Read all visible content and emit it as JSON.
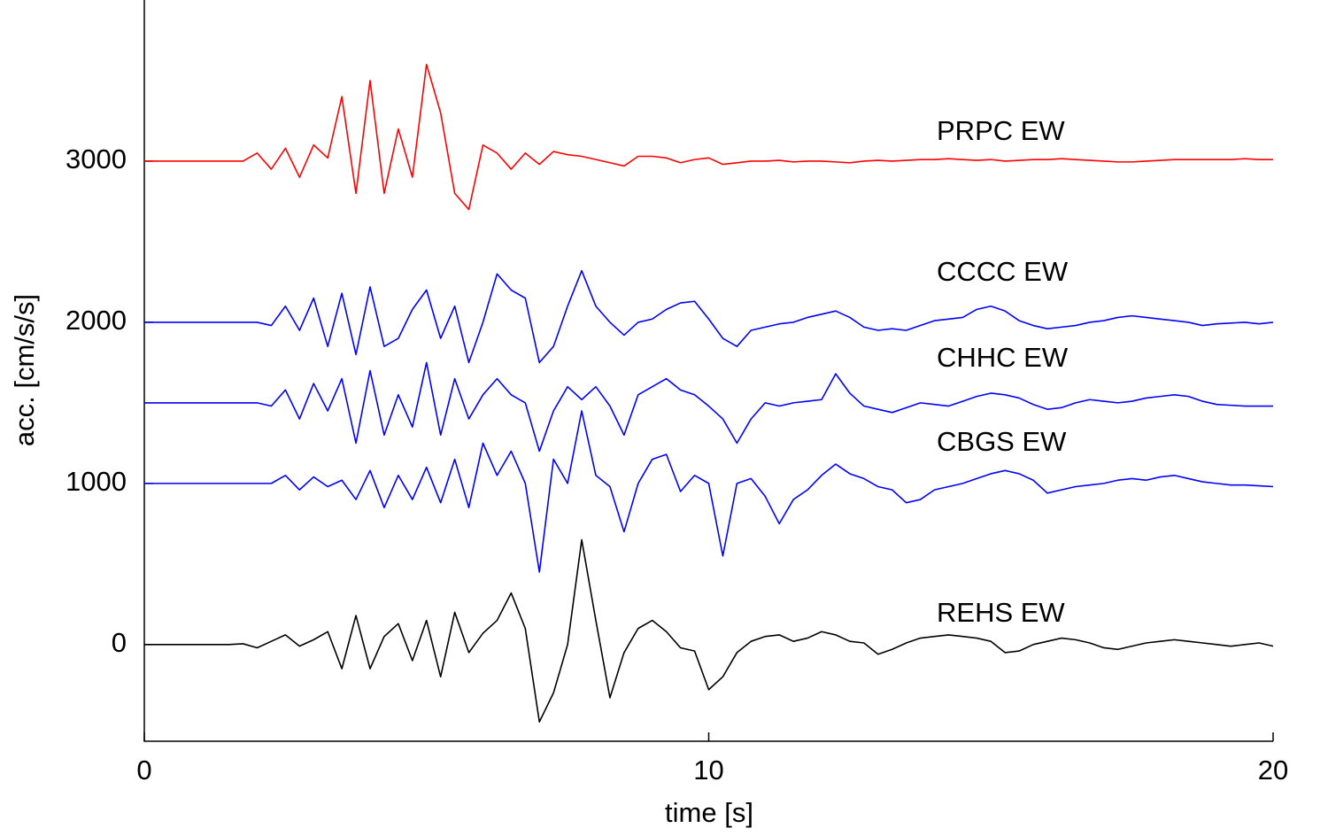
{
  "chart_data": {
    "type": "line",
    "x_label": "time [s]",
    "y_label": "acc. [cm/s/s]",
    "xlim": [
      0,
      20
    ],
    "xticks": [
      0,
      10,
      20
    ],
    "ylim": [
      -600,
      4000
    ],
    "yticks": [
      0,
      1000,
      2000,
      3000
    ],
    "grid": false,
    "x": [
      0,
      0.25,
      0.5,
      0.75,
      1,
      1.25,
      1.5,
      1.75,
      2,
      2.25,
      2.5,
      2.75,
      3,
      3.25,
      3.5,
      3.75,
      4,
      4.25,
      4.5,
      4.75,
      5,
      5.25,
      5.5,
      5.75,
      6,
      6.25,
      6.5,
      6.75,
      7,
      7.25,
      7.5,
      7.75,
      8,
      8.25,
      8.5,
      8.75,
      9,
      9.25,
      9.5,
      9.75,
      10,
      10.25,
      10.5,
      10.75,
      11,
      11.25,
      11.5,
      11.75,
      12,
      12.25,
      12.5,
      12.75,
      13,
      13.25,
      13.5,
      13.75,
      14,
      14.25,
      14.5,
      14.75,
      15,
      15.25,
      15.5,
      15.75,
      16,
      16.25,
      16.5,
      16.75,
      17,
      17.25,
      17.5,
      17.75,
      18,
      18.25,
      18.5,
      18.75,
      19,
      19.25,
      19.5,
      19.75,
      20
    ],
    "series": [
      {
        "name": "PRPC EW",
        "color": "#ff0000",
        "values": [
          3000,
          3000,
          3000,
          3000,
          3000,
          3000,
          3000,
          3000,
          3050,
          2950,
          3080,
          2900,
          3100,
          3020,
          3400,
          2800,
          3500,
          2800,
          3200,
          2900,
          3600,
          3300,
          2800,
          2700,
          3100,
          3050,
          2950,
          3050,
          2980,
          3060,
          3040,
          3030,
          3010,
          2990,
          2970,
          3030,
          3030,
          3020,
          2990,
          3010,
          3020,
          2980,
          2990,
          3000,
          3000,
          3005,
          2995,
          3000,
          3000,
          2995,
          2990,
          3000,
          3005,
          3000,
          3005,
          3010,
          3010,
          3015,
          3010,
          3005,
          3010,
          3000,
          3005,
          3010,
          3010,
          3015,
          3010,
          3005,
          3000,
          2995,
          2995,
          3000,
          3005,
          3010,
          3010,
          3010,
          3010,
          3010,
          3015,
          3010,
          3010
        ]
      },
      {
        "name": "CCCC EW",
        "color": "#0000ff",
        "values": [
          2000,
          2000,
          2000,
          2000,
          2000,
          2000,
          2000,
          2000,
          2000,
          1980,
          2100,
          1950,
          2150,
          1850,
          2180,
          1800,
          2220,
          1850,
          1900,
          2080,
          2200,
          1900,
          2100,
          1750,
          2000,
          2300,
          2200,
          2150,
          1750,
          1850,
          2100,
          2320,
          2100,
          2000,
          1920,
          2000,
          2020,
          2080,
          2120,
          2130,
          2020,
          1900,
          1850,
          1950,
          1970,
          1990,
          2000,
          2030,
          2050,
          2070,
          2030,
          1970,
          1950,
          1960,
          1950,
          1980,
          2010,
          2020,
          2030,
          2080,
          2100,
          2070,
          2010,
          1980,
          1960,
          1970,
          1980,
          2000,
          2010,
          2030,
          2040,
          2030,
          2020,
          2010,
          2000,
          1980,
          1990,
          1995,
          2000,
          1990,
          2000
        ]
      },
      {
        "name": "CHHC EW",
        "color": "#0000ff",
        "values": [
          1500,
          1500,
          1500,
          1500,
          1500,
          1500,
          1500,
          1500,
          1500,
          1480,
          1580,
          1400,
          1620,
          1450,
          1650,
          1250,
          1700,
          1300,
          1550,
          1350,
          1750,
          1300,
          1650,
          1400,
          1550,
          1650,
          1550,
          1500,
          1200,
          1450,
          1600,
          1520,
          1600,
          1480,
          1300,
          1550,
          1600,
          1650,
          1580,
          1550,
          1480,
          1400,
          1250,
          1400,
          1500,
          1480,
          1500,
          1510,
          1520,
          1680,
          1560,
          1480,
          1460,
          1440,
          1470,
          1500,
          1490,
          1480,
          1510,
          1540,
          1560,
          1550,
          1530,
          1490,
          1460,
          1470,
          1500,
          1520,
          1510,
          1500,
          1510,
          1530,
          1540,
          1550,
          1540,
          1510,
          1490,
          1485,
          1480,
          1480,
          1480
        ]
      },
      {
        "name": "CBGS EW",
        "color": "#0000ff",
        "values": [
          1000,
          1000,
          1000,
          1000,
          1000,
          1000,
          1000,
          1000,
          1000,
          1000,
          1050,
          960,
          1040,
          980,
          1020,
          900,
          1080,
          850,
          1050,
          900,
          1100,
          880,
          1150,
          850,
          1250,
          1050,
          1200,
          1000,
          450,
          1150,
          1000,
          1450,
          1050,
          980,
          700,
          1000,
          1150,
          1180,
          950,
          1050,
          1000,
          550,
          1000,
          1030,
          920,
          750,
          900,
          960,
          1050,
          1120,
          1060,
          1030,
          980,
          960,
          880,
          900,
          960,
          980,
          1000,
          1030,
          1060,
          1080,
          1060,
          1020,
          940,
          960,
          980,
          990,
          1000,
          1020,
          1030,
          1020,
          1040,
          1050,
          1030,
          1010,
          1000,
          990,
          990,
          985,
          980
        ]
      },
      {
        "name": "REHS EW",
        "color": "#000000",
        "values": [
          0,
          0,
          0,
          0,
          0,
          0,
          0,
          5,
          -20,
          20,
          60,
          -10,
          30,
          80,
          -150,
          180,
          -150,
          50,
          130,
          -100,
          150,
          -200,
          200,
          -50,
          70,
          150,
          320,
          100,
          -480,
          -300,
          0,
          650,
          150,
          -330,
          -50,
          100,
          150,
          80,
          -20,
          -40,
          -280,
          -200,
          -50,
          20,
          50,
          60,
          20,
          40,
          80,
          60,
          20,
          10,
          -60,
          -30,
          10,
          40,
          50,
          60,
          50,
          40,
          20,
          -50,
          -40,
          0,
          20,
          40,
          30,
          10,
          -20,
          -30,
          -10,
          10,
          20,
          30,
          20,
          10,
          0,
          -10,
          0,
          10,
          -10
        ]
      }
    ]
  }
}
